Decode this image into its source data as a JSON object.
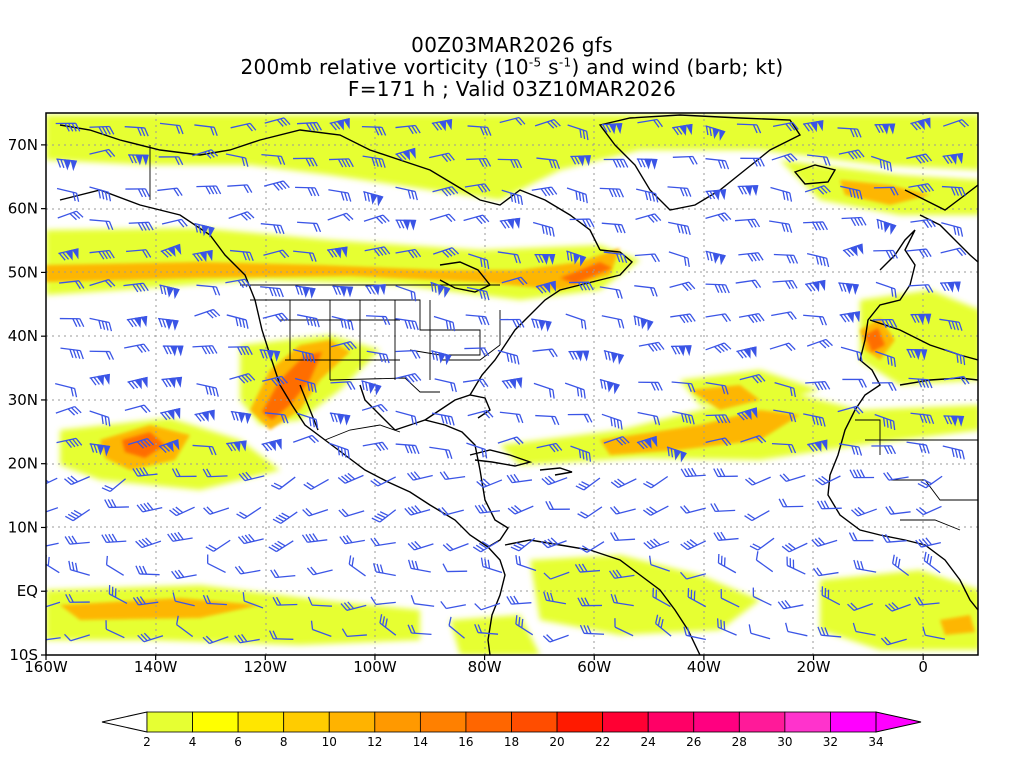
{
  "title": {
    "line1": "00Z03MAR2026 gfs",
    "line2_prefix": "200mb relative vorticity (10",
    "line2_exp1": "-5",
    "line2_mid": " s",
    "line2_exp2": "-1",
    "line2_suffix": ") and wind (barb; kt)",
    "line3": "F=171 h ; Valid 03Z10MAR2026"
  },
  "map": {
    "lon_range": [
      -160,
      10
    ],
    "lat_range": [
      -10,
      75
    ],
    "lon_ticks": [
      "160W",
      "140W",
      "120W",
      "100W",
      "80W",
      "60W",
      "40W",
      "20W",
      "0"
    ],
    "lat_ticks": [
      "70N",
      "60N",
      "50N",
      "40N",
      "30N",
      "20N",
      "10N",
      "EQ",
      "10S"
    ],
    "barb_color": "#3b55e6",
    "coast_color": "#000000",
    "grid": "dotted"
  },
  "colorbar": {
    "levels": [
      "2",
      "4",
      "6",
      "8",
      "10",
      "12",
      "14",
      "16",
      "18",
      "20",
      "22",
      "24",
      "26",
      "28",
      "30",
      "32",
      "34"
    ],
    "colors": [
      "#e6ff33",
      "#ffff00",
      "#ffe600",
      "#ffcc00",
      "#ffb300",
      "#ff9900",
      "#ff8000",
      "#ff6600",
      "#ff4d00",
      "#ff1a00",
      "#ff0033",
      "#ff0066",
      "#ff0080",
      "#ff1a99",
      "#ff33cc",
      "#ff00ff"
    ],
    "under_color": "#ffffff",
    "over_color": "#ff00ff"
  }
}
